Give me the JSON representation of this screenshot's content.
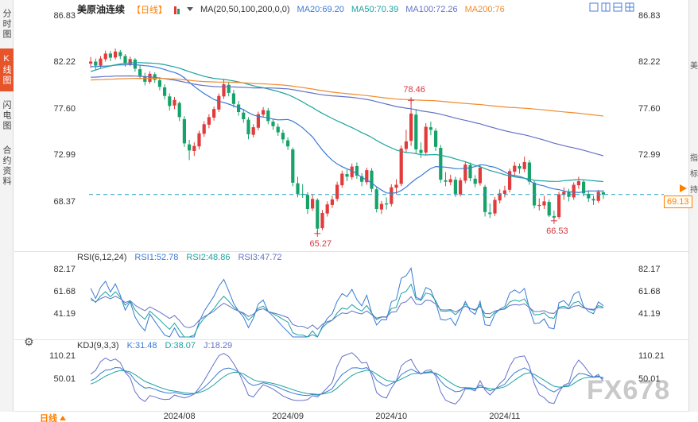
{
  "sidebar": {
    "items": [
      {
        "label": "分时图",
        "active": false
      },
      {
        "label": "K线图",
        "active": true
      },
      {
        "label": "闪电图",
        "active": false
      },
      {
        "label": "合约资料",
        "active": false
      }
    ]
  },
  "right_sidebar": {
    "items": [
      {
        "label": "美"
      },
      {
        "label": "指"
      },
      {
        "label": "标"
      },
      {
        "label": "持"
      }
    ]
  },
  "header": {
    "symbol": "美原油连续",
    "period": "【日线】",
    "ma_label": "MA(20,50,100,200,0,0)",
    "ma20": "MA20:69.20",
    "ma50": "MA50:70.39",
    "ma100": "MA100:72.26",
    "ma200": "MA200:76"
  },
  "rsi_header": {
    "label": "RSI(6,12,24)",
    "v1": "RSI1:52.78",
    "v2": "RSI2:48.86",
    "v3": "RSI3:47.72"
  },
  "kdj_header": {
    "label": "KDJ(9,3,3)",
    "k": "K:31.48",
    "d": "D:38.07",
    "j": "J:18.29"
  },
  "price_tag": {
    "value": "69.13"
  },
  "bottom": {
    "period_label": "日线"
  },
  "watermark": "FX678",
  "icons": {
    "settings": "⚙"
  },
  "chart_data": {
    "type": "candlestick",
    "title": "美原油连续 日线",
    "last_price": 69.13,
    "price_axis": {
      "max": 86.83,
      "min": 63.76,
      "labels": [
        {
          "t": "86.83",
          "v": 86.83
        },
        {
          "t": "82.22",
          "v": 82.22
        },
        {
          "t": "77.60",
          "v": 77.6
        },
        {
          "t": "72.99",
          "v": 72.99
        },
        {
          "t": "68.37",
          "v": 68.37
        }
      ],
      "labels_right": [
        {
          "t": "86.83",
          "v": 86.83
        },
        {
          "t": "82.22",
          "v": 82.22
        },
        {
          "t": "77.60",
          "v": 77.6
        },
        {
          "t": "72.99",
          "v": 72.99
        }
      ]
    },
    "rsi_axis": {
      "max": 95,
      "min": 20,
      "labels": [
        {
          "t": "82.17",
          "v": 82.17
        },
        {
          "t": "61.68",
          "v": 61.68
        },
        {
          "t": "41.19",
          "v": 41.19
        }
      ]
    },
    "kdj_axis": {
      "max": 152,
      "min": -35,
      "labels": [
        {
          "t": "110.21",
          "v": 110.21
        },
        {
          "t": "50.01",
          "v": 50.01
        }
      ]
    },
    "ma_periods": [
      20,
      50,
      100,
      200
    ],
    "rsi_periods": [
      6,
      12,
      24
    ],
    "kdj_params": [
      9,
      3,
      3
    ],
    "month_ticks": [
      {
        "index": 18,
        "label": "2024/08"
      },
      {
        "index": 40,
        "label": "2024/09"
      },
      {
        "index": 61,
        "label": "2024/10"
      },
      {
        "index": 84,
        "label": "2024/11"
      }
    ],
    "annotations": [
      {
        "label": "78.46",
        "index": 65,
        "price": 78.46,
        "pos": "above"
      },
      {
        "label": "65.27",
        "index": 46,
        "price": 65.27,
        "pos": "below"
      },
      {
        "label": "66.53",
        "index": 94,
        "price": 66.53,
        "pos": "below"
      }
    ],
    "colors": {
      "up": "#e23b3b",
      "down": "#17a26a",
      "line1": "#3a7bd5",
      "line2": "#1ba3a0",
      "line3": "#6472c8",
      "ma200": "#f08c2e",
      "dash": "#2a9fbf",
      "annotation": "#d4383f",
      "accent": "#ff7e00",
      "active_tab": "#e8542a",
      "icon_blue": "#4a7edb"
    },
    "prehistory": [
      76.8,
      77.0,
      76.5,
      77.4,
      78.1,
      77.7,
      78.6,
      79.2,
      78.5,
      79.0,
      79.7,
      80.1,
      79.5,
      80.6,
      81.2,
      80.8,
      81.7,
      82.4,
      81.9,
      82.6,
      83.2,
      83.7,
      84.5,
      85.2,
      86.2,
      85.9,
      85.1,
      84.8,
      85.6,
      84.6,
      84.2,
      83.6,
      83.1,
      82.4,
      81.8,
      82.5,
      81.4,
      80.1,
      79.4,
      78.8,
      79.3,
      78.6,
      77.9,
      78.4,
      77.7,
      77.0,
      76.5,
      77.3,
      78.0,
      77.4,
      76.9,
      77.5,
      78.2,
      77.6,
      76.8,
      76.2,
      75.5,
      74.8,
      73.8,
      73.2,
      73.8,
      74.5,
      75.2,
      76.1,
      77.0,
      77.8,
      78.5,
      79.2,
      79.8,
      80.4,
      81.0,
      81.6,
      82.2,
      81.7,
      82.4,
      83.0,
      83.5,
      83.9,
      83.2,
      82.7,
      82.3,
      81.9,
      82.5,
      83.1,
      82.8,
      82.2,
      81.8,
      82.4,
      82.9,
      82.5,
      82.0,
      81.6,
      82.1,
      82.7,
      82.3,
      81.9,
      82.3,
      82.1,
      81.8,
      82.0,
      81.7,
      81.5,
      81.9,
      82.2,
      82.0,
      81.6,
      81.3,
      81.0,
      80.7,
      80.9
    ],
    "candles": [
      [
        82.1,
        82.75,
        81.7,
        82.3
      ],
      [
        82.3,
        82.6,
        81.45,
        81.9
      ],
      [
        81.9,
        82.85,
        81.7,
        82.6
      ],
      [
        82.55,
        83.4,
        82.3,
        83.1
      ],
      [
        83.1,
        83.35,
        82.35,
        82.7
      ],
      [
        82.7,
        83.6,
        82.5,
        83.3
      ],
      [
        83.25,
        83.45,
        82.55,
        82.85
      ],
      [
        82.85,
        83.05,
        81.8,
        82.1
      ],
      [
        82.05,
        82.8,
        81.85,
        82.55
      ],
      [
        82.5,
        82.65,
        81.3,
        81.6
      ],
      [
        81.55,
        81.95,
        80.55,
        80.9
      ],
      [
        80.85,
        81.2,
        79.95,
        80.3
      ],
      [
        80.3,
        81.35,
        80.1,
        81.1
      ],
      [
        81.05,
        81.25,
        80.2,
        80.5
      ],
      [
        80.45,
        80.75,
        79.45,
        79.8
      ],
      [
        79.75,
        80.05,
        78.55,
        78.9
      ],
      [
        78.85,
        79.15,
        77.45,
        77.9
      ],
      [
        77.95,
        78.8,
        77.6,
        78.5
      ],
      [
        78.2,
        78.35,
        76.4,
        76.8
      ],
      [
        76.6,
        76.9,
        73.85,
        74.2
      ],
      [
        74.1,
        74.55,
        72.55,
        73.5
      ],
      [
        73.45,
        74.3,
        72.95,
        73.95
      ],
      [
        73.9,
        75.45,
        73.6,
        75.2
      ],
      [
        75.15,
        76.4,
        74.85,
        76.1
      ],
      [
        76.05,
        77.1,
        75.7,
        76.8
      ],
      [
        76.75,
        77.85,
        76.45,
        77.6
      ],
      [
        77.55,
        79.15,
        77.3,
        78.9
      ],
      [
        78.85,
        80.5,
        78.6,
        80.05
      ],
      [
        80.0,
        80.3,
        78.85,
        79.2
      ],
      [
        79.15,
        79.5,
        77.75,
        78.1
      ],
      [
        78.05,
        78.4,
        76.95,
        77.3
      ],
      [
        77.25,
        77.6,
        76.25,
        76.6
      ],
      [
        76.55,
        76.8,
        74.6,
        75.1
      ],
      [
        75.05,
        76.1,
        74.8,
        75.8
      ],
      [
        75.75,
        77.35,
        75.5,
        77.1
      ],
      [
        77.05,
        77.8,
        76.75,
        77.5
      ],
      [
        77.45,
        77.7,
        76.1,
        76.4
      ],
      [
        76.35,
        76.65,
        75.55,
        75.9
      ],
      [
        75.85,
        76.15,
        74.95,
        75.3
      ],
      [
        75.25,
        75.55,
        74.2,
        74.6
      ],
      [
        74.5,
        74.8,
        73.55,
        73.9
      ],
      [
        73.6,
        73.8,
        69.95,
        70.3
      ],
      [
        70.25,
        70.9,
        68.85,
        69.2
      ],
      [
        69.2,
        70.15,
        68.8,
        69.15
      ],
      [
        69.1,
        69.35,
        67.2,
        67.7
      ],
      [
        67.75,
        69.1,
        67.5,
        68.7
      ],
      [
        68.6,
        68.75,
        65.27,
        65.75
      ],
      [
        65.8,
        67.6,
        65.6,
        67.3
      ],
      [
        67.25,
        68.45,
        66.95,
        68.15
      ],
      [
        68.1,
        69.0,
        67.8,
        68.65
      ],
      [
        68.7,
        70.4,
        68.45,
        70.1
      ],
      [
        70.05,
        71.5,
        69.8,
        71.2
      ],
      [
        71.15,
        71.6,
        70.45,
        70.9
      ],
      [
        70.85,
        72.2,
        70.6,
        71.9
      ],
      [
        71.95,
        72.3,
        70.7,
        71.0
      ],
      [
        70.95,
        71.25,
        69.95,
        70.4
      ],
      [
        70.35,
        71.8,
        70.1,
        71.55
      ],
      [
        71.5,
        71.75,
        69.35,
        69.7
      ],
      [
        69.65,
        69.9,
        67.35,
        67.7
      ],
      [
        67.65,
        68.5,
        67.2,
        68.2
      ],
      [
        68.25,
        68.85,
        67.65,
        68.15
      ],
      [
        68.2,
        70.15,
        67.95,
        69.85
      ],
      [
        69.8,
        70.65,
        69.15,
        70.1
      ],
      [
        70.2,
        74.0,
        69.95,
        73.7
      ],
      [
        73.65,
        75.55,
        73.25,
        74.4
      ],
      [
        74.45,
        78.46,
        73.95,
        77.15
      ],
      [
        77.05,
        77.6,
        73.2,
        73.6
      ],
      [
        73.55,
        74.3,
        72.75,
        73.25
      ],
      [
        73.3,
        76.2,
        73.05,
        75.85
      ],
      [
        75.8,
        76.35,
        75.0,
        75.55
      ],
      [
        75.45,
        75.7,
        73.45,
        73.85
      ],
      [
        73.75,
        74.05,
        70.3,
        70.6
      ],
      [
        70.55,
        71.35,
        69.95,
        70.4
      ],
      [
        70.35,
        71.1,
        70.05,
        70.65
      ],
      [
        70.6,
        70.9,
        68.9,
        69.2
      ],
      [
        69.15,
        70.8,
        68.95,
        70.55
      ],
      [
        70.5,
        72.35,
        70.25,
        72.1
      ],
      [
        72.05,
        72.3,
        70.45,
        70.75
      ],
      [
        70.7,
        71.05,
        69.85,
        70.2
      ],
      [
        70.25,
        72.05,
        70.0,
        71.8
      ],
      [
        69.9,
        70.1,
        66.95,
        67.4
      ],
      [
        67.35,
        68.25,
        66.8,
        67.2
      ],
      [
        67.25,
        68.9,
        67.0,
        68.6
      ],
      [
        68.55,
        69.65,
        68.25,
        69.25
      ],
      [
        69.2,
        70.0,
        68.85,
        69.55
      ],
      [
        69.6,
        71.7,
        69.35,
        71.45
      ],
      [
        71.4,
        72.35,
        70.95,
        71.99
      ],
      [
        71.95,
        72.2,
        71.2,
        71.7
      ],
      [
        71.65,
        72.9,
        71.35,
        72.35
      ],
      [
        72.3,
        72.55,
        70.1,
        70.4
      ],
      [
        70.3,
        70.55,
        67.75,
        68.05
      ],
      [
        68.0,
        68.75,
        67.55,
        68.1
      ],
      [
        68.05,
        69.0,
        67.7,
        68.45
      ],
      [
        68.4,
        68.65,
        66.9,
        67.05
      ],
      [
        67.0,
        67.55,
        66.53,
        66.85
      ],
      [
        66.9,
        69.4,
        66.7,
        69.15
      ],
      [
        69.1,
        69.85,
        68.6,
        69.4
      ],
      [
        69.35,
        69.7,
        68.45,
        68.9
      ],
      [
        68.85,
        70.35,
        68.6,
        70.1
      ],
      [
        70.05,
        70.9,
        69.7,
        70.45
      ],
      [
        70.4,
        70.6,
        68.95,
        69.25
      ],
      [
        69.2,
        69.5,
        68.4,
        68.75
      ],
      [
        68.7,
        69.0,
        68.1,
        68.55
      ],
      [
        68.5,
        69.6,
        68.3,
        69.4
      ],
      [
        69.35,
        69.55,
        68.7,
        69.13
      ]
    ]
  }
}
